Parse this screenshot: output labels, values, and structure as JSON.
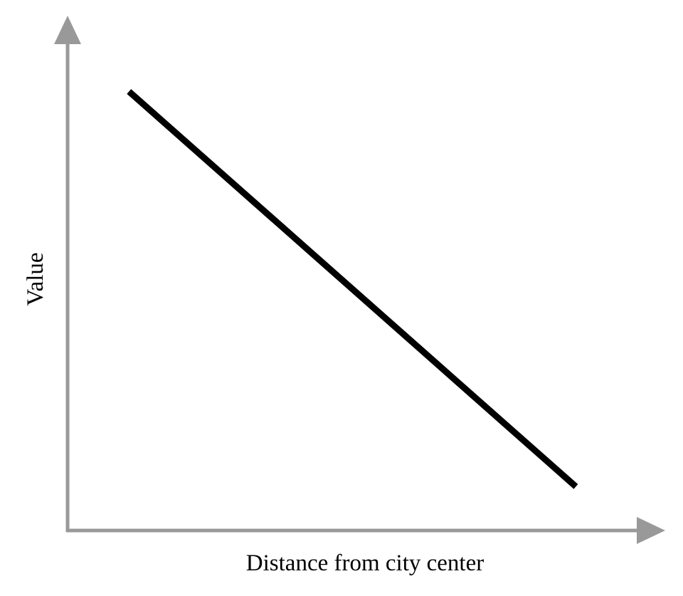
{
  "chart_data": {
    "type": "line",
    "title": "",
    "xlabel": "Distance from city center",
    "ylabel": "Value",
    "xlim": [
      0,
      1
    ],
    "ylim": [
      0,
      1
    ],
    "grid": false,
    "legend": "none",
    "series": [
      {
        "x": [
          0.11,
          0.91
        ],
        "y": [
          0.9,
          0.09
        ]
      }
    ]
  },
  "colors": {
    "axis": "#999999",
    "line": "#000000",
    "text": "#000000",
    "background": "#ffffff"
  }
}
